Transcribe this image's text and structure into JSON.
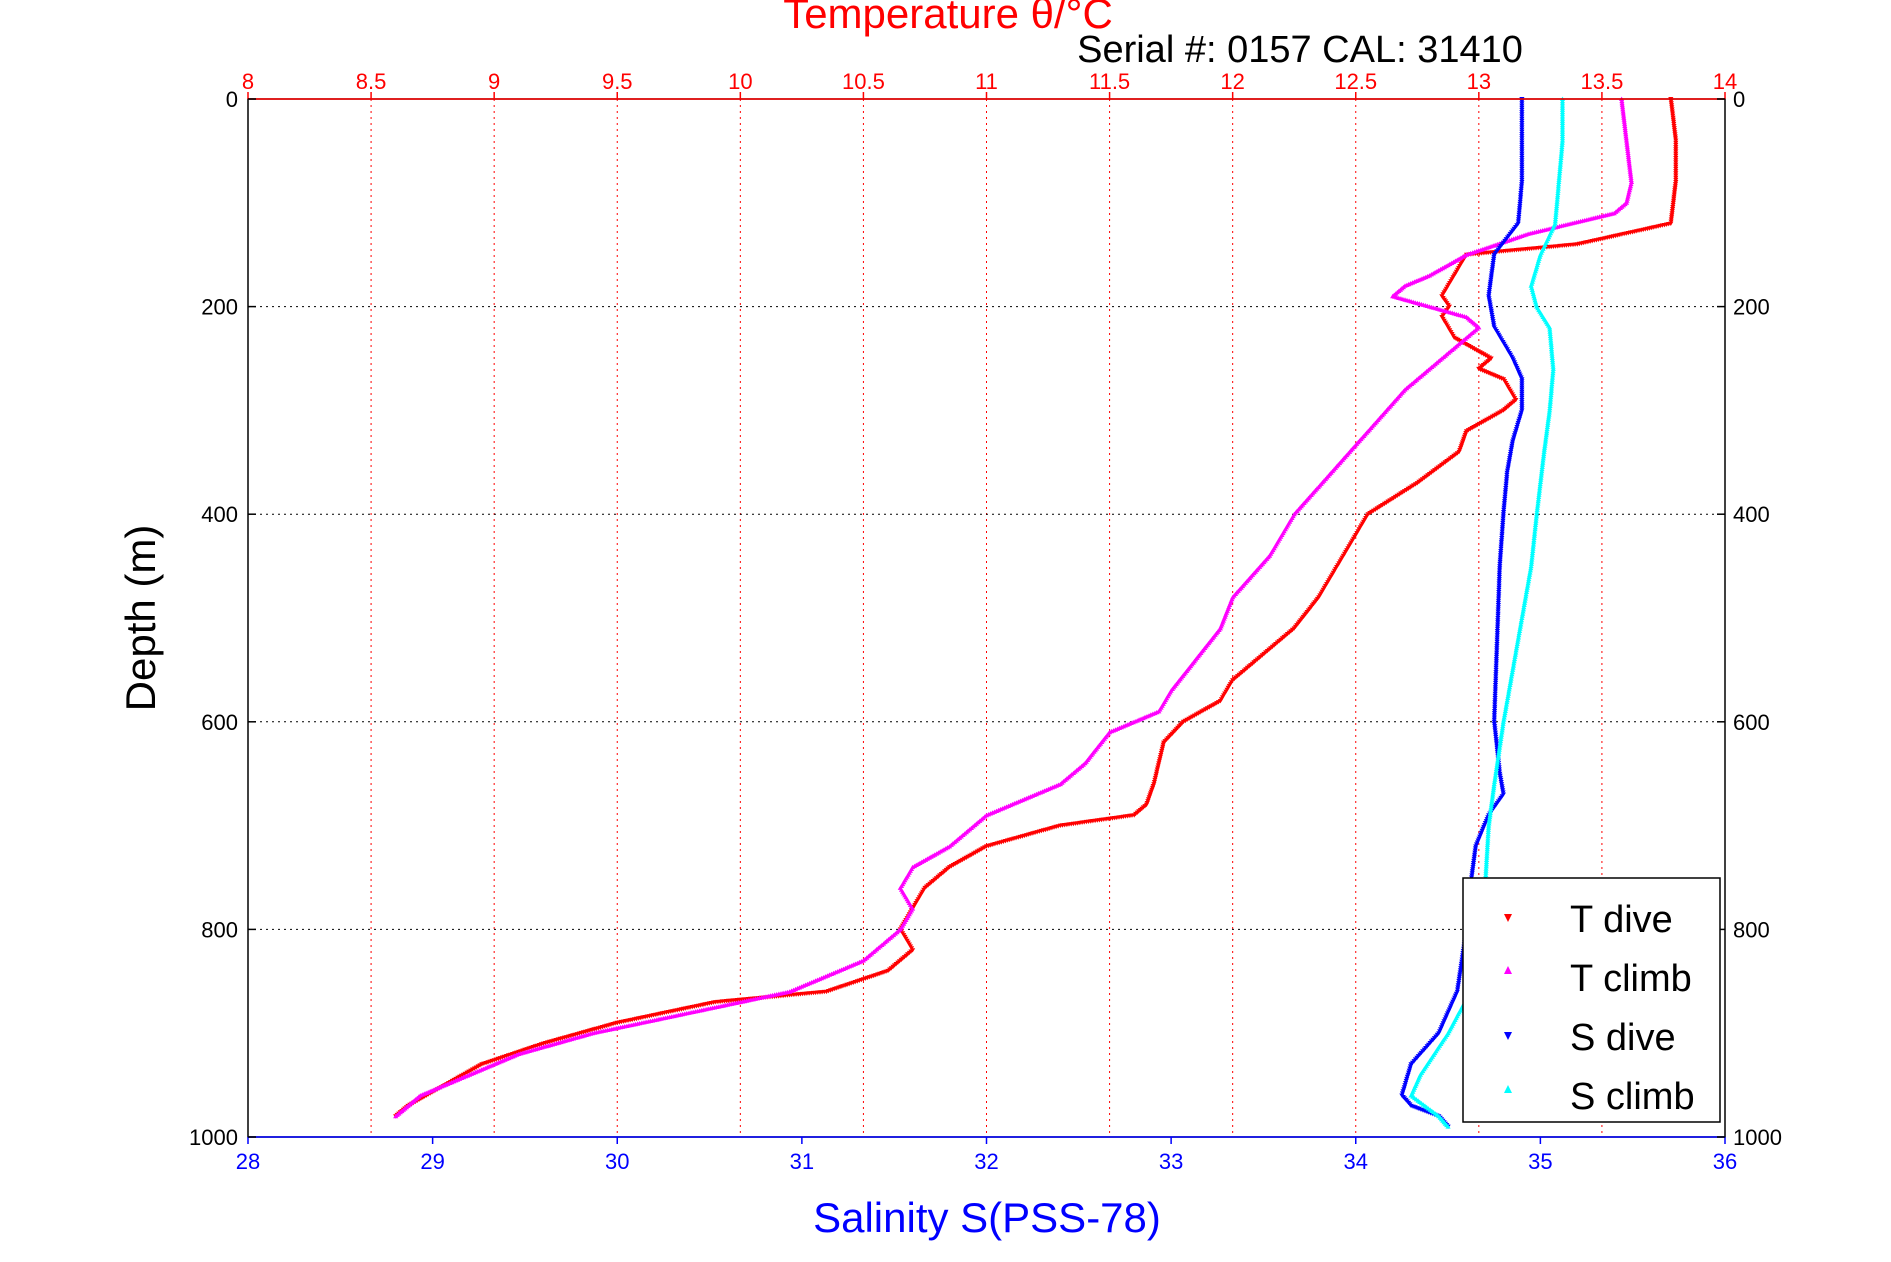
{
  "chart_data": {
    "type": "scatter",
    "title": "Temperature θ/°C",
    "subtitle": "Serial #: 0157  CAL: 31410",
    "xlabel": "Salinity S(PSS-78)",
    "ylabel": "Depth (m)",
    "x_bottom": {
      "label": "Salinity S(PSS-78)",
      "range": [
        28,
        36
      ],
      "ticks": [
        "28",
        "29",
        "30",
        "31",
        "32",
        "33",
        "34",
        "35",
        "36"
      ],
      "color": "#0000ff"
    },
    "x_top": {
      "label": "Temperature θ/°C",
      "range": [
        8,
        14
      ],
      "ticks": [
        "8",
        "8.5",
        "9",
        "9.5",
        "10",
        "10.5",
        "11",
        "11.5",
        "12",
        "12.5",
        "13",
        "13.5",
        "14"
      ],
      "color": "#ff0000"
    },
    "y": {
      "label": "Depth (m)",
      "range": [
        0,
        1000
      ],
      "reversed": true,
      "ticks": [
        "0",
        "200",
        "400",
        "600",
        "800",
        "1000"
      ]
    },
    "grid": true,
    "legend_position": "bottom-right",
    "series": [
      {
        "name": "T dive",
        "axis": "top",
        "color": "#ff0000",
        "marker": "triangle-down",
        "x": [
          13.78,
          13.8,
          13.8,
          13.79,
          13.78,
          13.4,
          12.95,
          12.9,
          12.85,
          12.88,
          12.85,
          12.9,
          13.05,
          13.0,
          13.1,
          13.15,
          13.1,
          12.95,
          12.92,
          12.75,
          12.55,
          12.45,
          12.35,
          12.25,
          12.1,
          12.0,
          11.95,
          11.8,
          11.72,
          11.7,
          11.68,
          11.65,
          11.6,
          11.3,
          11.0,
          10.85,
          10.75,
          10.7,
          10.65,
          10.7,
          10.6,
          10.35,
          9.9,
          9.5,
          9.2,
          8.95,
          8.8,
          8.65,
          8.6
        ],
        "y": [
          0,
          40,
          80,
          100,
          120,
          140,
          150,
          170,
          190,
          200,
          210,
          230,
          250,
          260,
          270,
          290,
          300,
          320,
          340,
          370,
          400,
          440,
          480,
          510,
          540,
          560,
          580,
          600,
          620,
          640,
          660,
          680,
          690,
          700,
          720,
          740,
          760,
          780,
          800,
          820,
          840,
          860,
          870,
          890,
          910,
          930,
          950,
          970,
          980
        ]
      },
      {
        "name": "T climb",
        "axis": "top",
        "color": "#ff00ff",
        "marker": "triangle-up",
        "x": [
          13.58,
          13.6,
          13.62,
          13.6,
          13.55,
          13.2,
          12.95,
          12.8,
          12.7,
          12.65,
          12.8,
          12.95,
          13.0,
          12.85,
          12.7,
          12.55,
          12.4,
          12.25,
          12.15,
          12.0,
          11.95,
          11.85,
          11.75,
          11.7,
          11.5,
          11.4,
          11.3,
          11.0,
          10.85,
          10.7,
          10.65,
          10.7,
          10.65,
          10.5,
          10.2,
          9.8,
          9.4,
          9.1,
          8.9,
          8.7,
          8.65,
          8.6
        ],
        "y": [
          0,
          40,
          80,
          100,
          110,
          130,
          150,
          170,
          180,
          190,
          200,
          210,
          220,
          250,
          280,
          320,
          360,
          400,
          440,
          480,
          510,
          540,
          570,
          590,
          610,
          640,
          660,
          690,
          720,
          740,
          760,
          780,
          800,
          830,
          860,
          880,
          900,
          920,
          940,
          960,
          970,
          980
        ]
      },
      {
        "name": "S dive",
        "axis": "bottom",
        "color": "#0000ff",
        "marker": "triangle-down",
        "x": [
          34.9,
          34.9,
          34.9,
          34.88,
          34.75,
          34.72,
          34.75,
          34.85,
          34.9,
          34.9,
          34.85,
          34.82,
          34.8,
          34.78,
          34.77,
          34.76,
          34.75,
          34.78,
          34.8,
          34.72,
          34.65,
          34.62,
          34.6,
          34.55,
          34.45,
          34.3,
          34.25,
          34.3,
          34.45,
          34.5
        ],
        "y": [
          0,
          40,
          80,
          120,
          150,
          190,
          220,
          250,
          270,
          300,
          330,
          360,
          400,
          450,
          500,
          550,
          600,
          650,
          670,
          690,
          720,
          760,
          800,
          860,
          900,
          930,
          960,
          970,
          980,
          990
        ]
      },
      {
        "name": "S climb",
        "axis": "bottom",
        "color": "#00ffff",
        "marker": "triangle-up",
        "x": [
          35.12,
          35.12,
          35.1,
          35.08,
          35.0,
          34.95,
          34.98,
          35.05,
          35.07,
          35.05,
          35.02,
          34.98,
          34.95,
          34.9,
          34.85,
          34.8,
          34.75,
          34.72,
          34.7,
          34.68,
          34.62,
          34.5,
          34.35,
          34.3,
          34.45,
          34.5
        ],
        "y": [
          0,
          40,
          80,
          120,
          150,
          180,
          200,
          220,
          260,
          300,
          340,
          400,
          450,
          500,
          550,
          600,
          660,
          700,
          760,
          820,
          860,
          900,
          940,
          960,
          980,
          990
        ]
      }
    ]
  }
}
